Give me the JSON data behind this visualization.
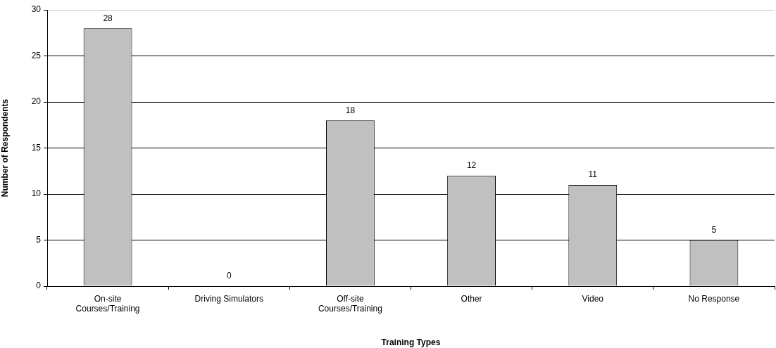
{
  "chart_data": {
    "type": "bar",
    "categories": [
      "On-site\nCourses/Training",
      "Driving Simulators",
      "Off-site\nCourses/Training",
      "Other",
      "Video",
      "No Response"
    ],
    "values": [
      28,
      0,
      18,
      12,
      11,
      5
    ],
    "color": "#c0c0c0",
    "xlabel": "Training Types",
    "ylabel": "Number of Respondents",
    "ylim": [
      0,
      30
    ],
    "yticks": [
      0,
      5,
      10,
      15,
      20,
      25,
      30
    ],
    "grid": "y",
    "data_labels": true
  }
}
